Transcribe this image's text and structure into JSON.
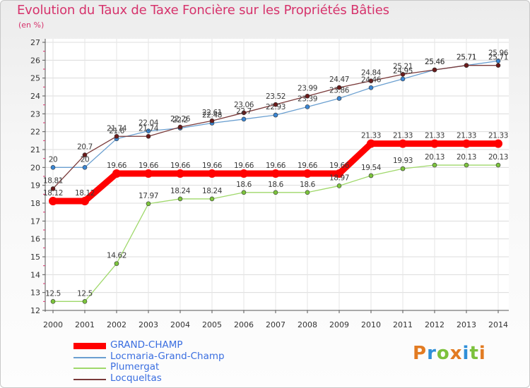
{
  "title": "Evolution du Taux de Taxe Foncière sur les Propriétés Bâties",
  "unit_label": "(en %)",
  "logo": {
    "text": [
      "P",
      "r",
      "o",
      "x",
      "i",
      "t",
      "i"
    ],
    "colors": [
      "#e27b22",
      "#2f8fd8",
      "#7cc13c",
      "#e27b22",
      "#2f8fd8",
      "#7cc13c",
      "#e27b22"
    ]
  },
  "chart_data": {
    "type": "line",
    "title": "Evolution du Taux de Taxe Foncière sur les Propriétés Bâties",
    "ylabel": "(en %)",
    "xlabel": "",
    "ylim": [
      12,
      27
    ],
    "yticks": [
      "12",
      "13",
      "14",
      "15",
      "16",
      "17",
      "18",
      "19",
      "20",
      "21",
      "22",
      "23",
      "24",
      "25",
      "26",
      "27"
    ],
    "categories": [
      "2000",
      "2001",
      "2002",
      "2003",
      "2004",
      "2005",
      "2006",
      "2007",
      "2008",
      "2009",
      "2010",
      "2011",
      "2012",
      "2013",
      "2014"
    ],
    "series": [
      {
        "name": "GRAND-CHAMP",
        "color": "#ff0000",
        "style": "thick",
        "values": [
          18.12,
          18.12,
          19.66,
          19.66,
          19.66,
          19.66,
          19.66,
          19.66,
          19.66,
          19.66,
          21.33,
          21.33,
          21.33,
          21.33,
          21.33
        ],
        "labels": [
          "18.12",
          "18.12",
          "19.66",
          "19.66",
          "19.66",
          "19.66",
          "19.66",
          "19.66",
          "19.66",
          "19.66",
          "21.33",
          "21.33",
          "21.33",
          "21.33",
          "21.33"
        ]
      },
      {
        "name": "Locmaria-Grand-Champ",
        "color": "#6a9fd0",
        "marker": "#3a86d4",
        "style": "thin",
        "values": [
          20,
          20,
          21.6,
          22.04,
          22.2,
          22.48,
          22.7,
          22.93,
          23.39,
          23.86,
          24.46,
          24.95,
          25.46,
          25.71,
          25.96
        ],
        "labels": [
          "20",
          "20",
          "21.6",
          "22.04",
          "22.2",
          "22.48",
          "22.7",
          "22.93",
          "23.39",
          "23.86",
          "24.46",
          "24.95",
          "25.46",
          "25.71",
          "25.96"
        ]
      },
      {
        "name": "Plumergat",
        "color": "#9fd86a",
        "marker": "#7cc43c",
        "style": "thin",
        "values": [
          12.5,
          12.5,
          14.62,
          17.97,
          18.24,
          18.24,
          18.6,
          18.6,
          18.6,
          18.97,
          19.54,
          19.93,
          20.13,
          20.13,
          20.13
        ],
        "labels": [
          "12.5",
          "12.5",
          "14.62",
          "17.97",
          "18.24",
          "18.24",
          "18.6",
          "18.6",
          "18.6",
          "18.97",
          "19.54",
          "19.93",
          "20.13",
          "20.13",
          "20.13"
        ]
      },
      {
        "name": "Locqueltas",
        "color": "#7a3a3a",
        "marker": "#6b1a1a",
        "style": "thin",
        "values": [
          18.81,
          20.7,
          21.74,
          21.74,
          22.26,
          22.61,
          23.06,
          23.52,
          23.99,
          24.47,
          24.84,
          25.21,
          25.46,
          25.71,
          25.71
        ],
        "labels": [
          "18.81",
          "20.7",
          "21.74",
          "21.74",
          "22.26",
          "22.61",
          "23.06",
          "23.52",
          "23.99",
          "24.47",
          "24.84",
          "25.21",
          "25.46",
          "25.71",
          "25.71"
        ]
      }
    ]
  }
}
